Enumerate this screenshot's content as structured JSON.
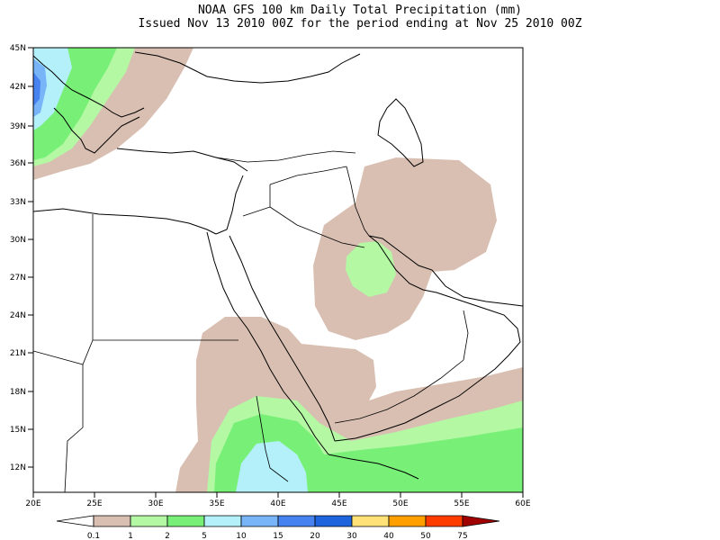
{
  "header": {
    "title_line1": "NOAA GFS 100 km Daily Total Precipitation (mm)",
    "title_line2": "Issued Nov 13 2010 00Z for the period ending at Nov 25 2010 00Z"
  },
  "map": {
    "lat_labels": [
      "45N",
      "42N",
      "39N",
      "36N",
      "33N",
      "30N",
      "27N",
      "24N",
      "21N",
      "18N",
      "15N",
      "12N"
    ],
    "lon_labels": [
      "20E",
      "25E",
      "30E",
      "35E",
      "40E",
      "45E",
      "50E",
      "55E",
      "60E"
    ]
  },
  "legend": {
    "colors": [
      "#ffffff",
      "#d9bfb2",
      "#b4f8a4",
      "#78f078",
      "#b4f0fa",
      "#78b4f8",
      "#4682f0",
      "#1e64dc",
      "#ffe178",
      "#ffa000",
      "#ff3c00",
      "#a00000"
    ],
    "labels": [
      "0.1",
      "1",
      "2",
      "5",
      "10",
      "15",
      "20",
      "30",
      "40",
      "50",
      "75"
    ]
  }
}
